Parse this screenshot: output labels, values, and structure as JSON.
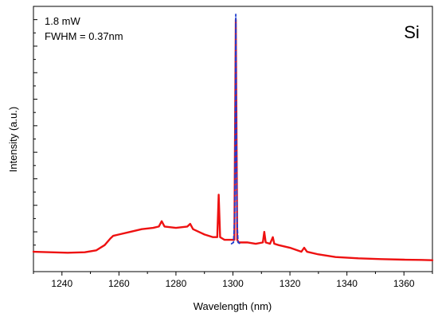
{
  "chart_data": {
    "type": "line",
    "title": "",
    "xlabel": "Wavelength (nm)",
    "ylabel": "Intensity (a.u.)",
    "xlim": [
      1230,
      1370
    ],
    "ylim": [
      0,
      100
    ],
    "x_ticks": [
      1240,
      1260,
      1280,
      1300,
      1320,
      1340,
      1360
    ],
    "y_tick_labels_shown": false,
    "grid": false,
    "legend": "none",
    "annotations": {
      "power": "1.8 mW",
      "fwhm": "FWHM = 0.37nm",
      "material": "Si"
    },
    "series": [
      {
        "color": "#ee1111",
        "style": "solid",
        "x": [
          1230,
          1236,
          1242,
          1248,
          1252,
          1255,
          1257,
          1258,
          1260,
          1264,
          1268,
          1272,
          1274,
          1275,
          1276,
          1280,
          1284,
          1285,
          1286,
          1290,
          1293,
          1294.5,
          1295,
          1295.5,
          1297,
          1299,
          1300.5,
          1301,
          1301.5,
          1302,
          1303,
          1305,
          1308,
          1310.5,
          1311,
          1311.5,
          1313,
          1314,
          1314.5,
          1316,
          1320,
          1324,
          1325,
          1326,
          1330,
          1336,
          1344,
          1352,
          1360,
          1366,
          1370
        ],
        "y": [
          7.5,
          7.3,
          7.1,
          7.3,
          8,
          10,
          12.5,
          13.5,
          14,
          15,
          16,
          16.5,
          17,
          19,
          17,
          16.5,
          17,
          18,
          16,
          14,
          13,
          13,
          29,
          13,
          12,
          12,
          12,
          95,
          12,
          11,
          11,
          11,
          10.5,
          11,
          15,
          11,
          10.5,
          13,
          10.5,
          10,
          9,
          7.5,
          9,
          7.5,
          6.5,
          5.5,
          5,
          4.7,
          4.5,
          4.4,
          4.3
        ]
      },
      {
        "color": "#1f3fd0",
        "style": "dashed",
        "x": [
          1299.5,
          1300.2,
          1300.6,
          1300.85,
          1301,
          1301.15,
          1301.4,
          1301.8,
          1302.5
        ],
        "y": [
          10.5,
          11,
          20,
          60,
          97,
          60,
          20,
          11,
          10.5
        ]
      }
    ]
  }
}
